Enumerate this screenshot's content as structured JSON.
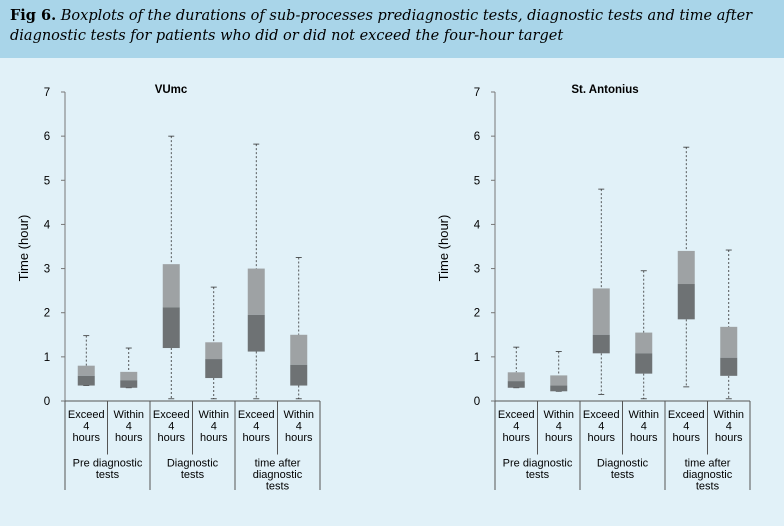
{
  "caption": {
    "fig_label": "Fig 6.",
    "text": "Boxplots of the durations of sub-processes prediagnostic tests, diagnostic tests and time after diagnostic tests for patients who did or did not exceed the four-hour target"
  },
  "chart_data": [
    {
      "type": "boxplot",
      "title": "VUmc",
      "ylabel": "Time (hour)",
      "ylim": [
        0,
        7
      ],
      "yticks": [
        0,
        1,
        2,
        3,
        4,
        5,
        6,
        7
      ],
      "categories": [
        "Exceed 4 hours",
        "Within 4 hours",
        "Exceed 4 hours",
        "Within 4 hours",
        "Exceed 4 hours",
        "Within 4 hours"
      ],
      "category_lines": [
        [
          "Exceed",
          "4",
          "hours"
        ],
        [
          "Within",
          "4",
          "hours"
        ],
        [
          "Exceed",
          "4",
          "hours"
        ],
        [
          "Within",
          "4",
          "hours"
        ],
        [
          "Exceed",
          "4",
          "hours"
        ],
        [
          "Within",
          "4",
          "hours"
        ]
      ],
      "groups": [
        {
          "lines": [
            "Pre diagnostic",
            "tests"
          ],
          "span": [
            0,
            1
          ]
        },
        {
          "lines": [
            "Diagnostic",
            "tests"
          ],
          "span": [
            2,
            3
          ]
        },
        {
          "lines": [
            "time after",
            "diagnostic",
            "tests"
          ],
          "span": [
            4,
            5
          ]
        }
      ],
      "boxes": [
        {
          "min": 0.35,
          "q1": 0.35,
          "median": 0.57,
          "q3": 0.8,
          "max": 1.48
        },
        {
          "min": 0.3,
          "q1": 0.3,
          "median": 0.47,
          "q3": 0.66,
          "max": 1.2
        },
        {
          "min": 0.05,
          "q1": 1.2,
          "median": 2.12,
          "q3": 3.1,
          "max": 6.0
        },
        {
          "min": 0.05,
          "q1": 0.52,
          "median": 0.95,
          "q3": 1.33,
          "max": 2.58
        },
        {
          "min": 0.05,
          "q1": 1.12,
          "median": 1.95,
          "q3": 3.0,
          "max": 5.82
        },
        {
          "min": 0.05,
          "q1": 0.35,
          "median": 0.82,
          "q3": 1.5,
          "max": 3.25
        }
      ],
      "colors": {
        "upper_box": "#9ea2a4",
        "lower_box": "#6e7274",
        "whisker": "#333333"
      }
    },
    {
      "type": "boxplot",
      "title": "St. Antonius",
      "ylabel": "Time (hour)",
      "ylim": [
        0,
        7
      ],
      "yticks": [
        0,
        1,
        2,
        3,
        4,
        5,
        6,
        7
      ],
      "categories": [
        "Exceed 4 hours",
        "Within 4 hours",
        "Exceed 4 hours",
        "Within 4 hours",
        "Exceed 4 hours",
        "Within 4 hours"
      ],
      "category_lines": [
        [
          "Exceed",
          "4",
          "hours"
        ],
        [
          "Within",
          "4",
          "hours"
        ],
        [
          "Exceed",
          "4",
          "hours"
        ],
        [
          "Within",
          "4",
          "hours"
        ],
        [
          "Exceed",
          "4",
          "hours"
        ],
        [
          "Within",
          "4",
          "hours"
        ]
      ],
      "groups": [
        {
          "lines": [
            "Pre diagnostic",
            "tests"
          ],
          "span": [
            0,
            1
          ]
        },
        {
          "lines": [
            "Diagnostic",
            "tests"
          ],
          "span": [
            2,
            3
          ]
        },
        {
          "lines": [
            "time after",
            "diagnostic",
            "tests"
          ],
          "span": [
            4,
            5
          ]
        }
      ],
      "boxes": [
        {
          "min": 0.3,
          "q1": 0.3,
          "median": 0.45,
          "q3": 0.65,
          "max": 1.22
        },
        {
          "min": 0.22,
          "q1": 0.22,
          "median": 0.35,
          "q3": 0.58,
          "max": 1.12
        },
        {
          "min": 0.15,
          "q1": 1.08,
          "median": 1.5,
          "q3": 2.55,
          "max": 4.8
        },
        {
          "min": 0.05,
          "q1": 0.62,
          "median": 1.08,
          "q3": 1.55,
          "max": 2.95
        },
        {
          "min": 0.32,
          "q1": 1.85,
          "median": 2.65,
          "q3": 3.4,
          "max": 5.75
        },
        {
          "min": 0.05,
          "q1": 0.57,
          "median": 0.98,
          "q3": 1.68,
          "max": 3.42
        }
      ],
      "colors": {
        "upper_box": "#9ea2a4",
        "lower_box": "#6e7274",
        "whisker": "#333333"
      }
    }
  ]
}
